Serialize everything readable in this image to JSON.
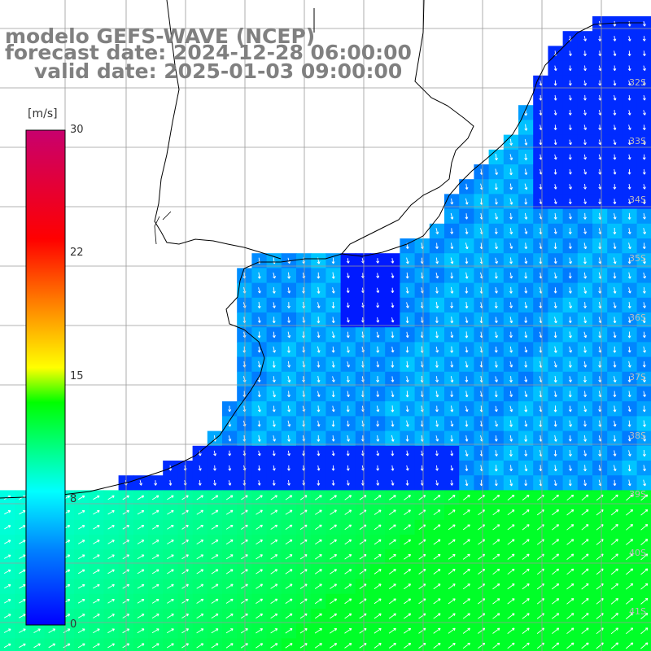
{
  "header": {
    "line1": "modelo GEFS-WAVE (NCEP)",
    "line2": "forecast date: 2024-12-28 06:00:00",
    "line3": "valid date: 2025-01-03 09:00:00"
  },
  "colorbar": {
    "unit": "[m/s]",
    "ticks": [
      "30",
      "22",
      "15",
      "8",
      "0"
    ],
    "colors": [
      "#0000ff",
      "#00a0ff",
      "#00ffff",
      "#00ff00",
      "#ffff00",
      "#ff8000",
      "#ff0000",
      "#c8006e"
    ]
  },
  "lat_labels": [
    "32S",
    "33S",
    "34S",
    "35S",
    "36S",
    "37S",
    "38S",
    "39S",
    "40S",
    "41S"
  ],
  "colors": {
    "land": "#ffffff",
    "grid": "#a0a0a0",
    "coast": "#000000",
    "title": "#808080"
  }
}
